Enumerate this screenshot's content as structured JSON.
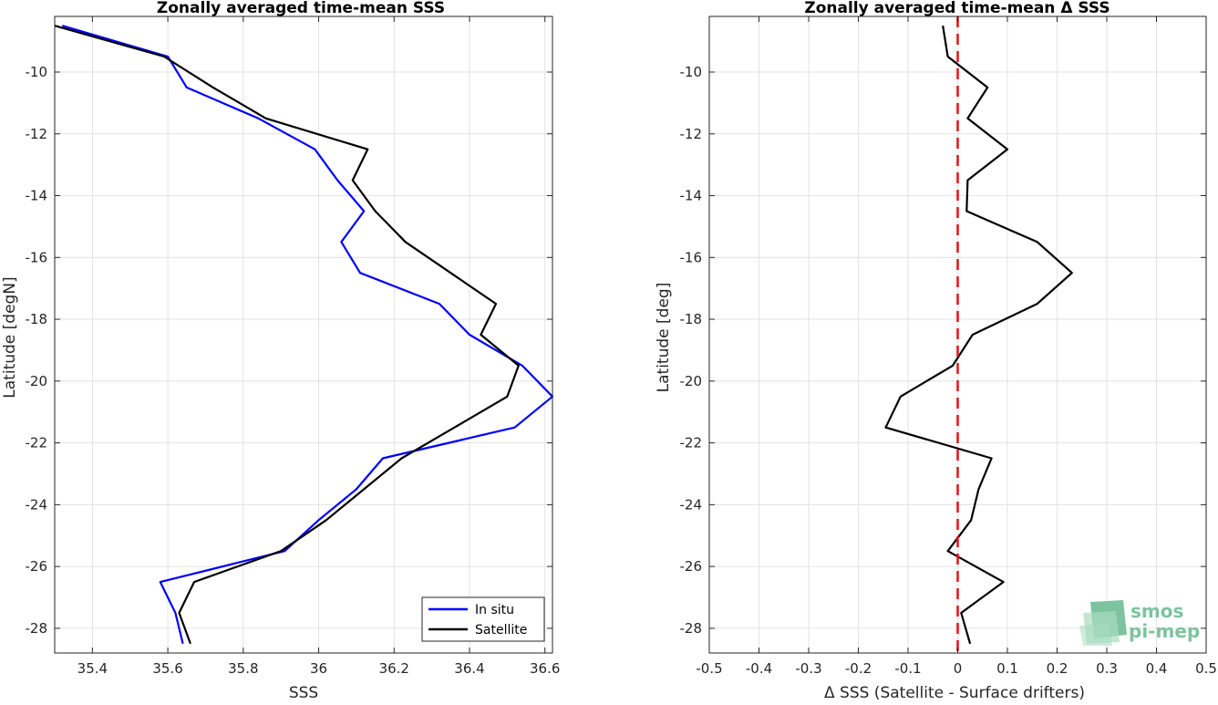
{
  "chart_data": [
    {
      "type": "line",
      "title": "Zonally averaged time-mean SSS",
      "xlabel": "SSS",
      "ylabel": "Latitude [degN]",
      "xlim": [
        35.3,
        36.62
      ],
      "ylim": [
        -28.8,
        -8.2
      ],
      "xticks": [
        35.4,
        35.6,
        35.8,
        36,
        36.2,
        36.4,
        36.6
      ],
      "xtick_labels": [
        "35.4",
        "35.6",
        "35.8",
        "36",
        "36.2",
        "36.4",
        "36.6"
      ],
      "yticks": [
        -28,
        -26,
        -24,
        -22,
        -20,
        -18,
        -16,
        -14,
        -12,
        -10
      ],
      "ytick_labels": [
        "-28",
        "-26",
        "-24",
        "-22",
        "-20",
        "-18",
        "-16",
        "-14",
        "-12",
        "-10"
      ],
      "grid": true,
      "legend_position": "bottom-right",
      "series": [
        {
          "name": "In situ",
          "color": "#0000ff",
          "points": [
            [
              35.32,
              -8.5
            ],
            [
              35.6,
              -9.5
            ],
            [
              35.65,
              -10.5
            ],
            [
              35.84,
              -11.5
            ],
            [
              35.99,
              -12.5
            ],
            [
              36.05,
              -13.5
            ],
            [
              36.12,
              -14.5
            ],
            [
              36.06,
              -15.5
            ],
            [
              36.11,
              -16.5
            ],
            [
              36.32,
              -17.5
            ],
            [
              36.4,
              -18.5
            ],
            [
              36.54,
              -19.5
            ],
            [
              36.62,
              -20.5
            ],
            [
              36.52,
              -21.5
            ],
            [
              36.17,
              -22.5
            ],
            [
              36.1,
              -23.5
            ],
            [
              36.0,
              -24.5
            ],
            [
              35.91,
              -25.5
            ],
            [
              35.58,
              -26.5
            ],
            [
              35.62,
              -27.5
            ],
            [
              35.64,
              -28.5
            ]
          ]
        },
        {
          "name": "Satellite",
          "color": "#000000",
          "points": [
            [
              35.3,
              -8.5
            ],
            [
              35.59,
              -9.5
            ],
            [
              35.72,
              -10.5
            ],
            [
              35.86,
              -11.5
            ],
            [
              36.13,
              -12.5
            ],
            [
              36.09,
              -13.5
            ],
            [
              36.15,
              -14.5
            ],
            [
              36.23,
              -15.5
            ],
            [
              36.35,
              -16.5
            ],
            [
              36.47,
              -17.5
            ],
            [
              36.43,
              -18.5
            ],
            [
              36.53,
              -19.5
            ],
            [
              36.5,
              -20.5
            ],
            [
              36.36,
              -21.5
            ],
            [
              36.22,
              -22.5
            ],
            [
              36.12,
              -23.5
            ],
            [
              36.02,
              -24.5
            ],
            [
              35.9,
              -25.5
            ],
            [
              35.67,
              -26.5
            ],
            [
              35.63,
              -27.5
            ],
            [
              35.66,
              -28.5
            ]
          ]
        }
      ]
    },
    {
      "type": "line",
      "title": "Zonally averaged time-mean Δ SSS",
      "xlabel": "Δ SSS (Satellite - Surface drifters)",
      "ylabel": "Latitude [deg]",
      "xlim": [
        -0.5,
        0.5
      ],
      "ylim": [
        -28.8,
        -8.2
      ],
      "xticks": [
        -0.5,
        -0.4,
        -0.3,
        -0.2,
        -0.1,
        0,
        0.1,
        0.2,
        0.3,
        0.4,
        0.5
      ],
      "xtick_labels": [
        "-0.5",
        "-0.4",
        "-0.3",
        "-0.2",
        "-0.1",
        "0",
        "0.1",
        "0.2",
        "0.3",
        "0.4",
        "0.5"
      ],
      "yticks": [
        -28,
        -26,
        -24,
        -22,
        -20,
        -18,
        -16,
        -14,
        -12,
        -10
      ],
      "ytick_labels": [
        "-28",
        "-26",
        "-24",
        "-22",
        "-20",
        "-18",
        "-16",
        "-14",
        "-12",
        "-10"
      ],
      "grid": true,
      "reference_line": {
        "x": 0,
        "color": "#e41a1c",
        "style": "dashed"
      },
      "series": [
        {
          "color": "#000000",
          "points": [
            [
              -0.03,
              -8.5
            ],
            [
              -0.02,
              -9.5
            ],
            [
              0.06,
              -10.5
            ],
            [
              0.02,
              -11.5
            ],
            [
              0.1,
              -12.5
            ],
            [
              0.02,
              -13.5
            ],
            [
              0.018,
              -14.5
            ],
            [
              0.16,
              -15.5
            ],
            [
              0.23,
              -16.5
            ],
            [
              0.16,
              -17.5
            ],
            [
              0.03,
              -18.5
            ],
            [
              -0.01,
              -19.5
            ],
            [
              -0.115,
              -20.5
            ],
            [
              -0.145,
              -21.5
            ],
            [
              0.068,
              -22.5
            ],
            [
              0.042,
              -23.5
            ],
            [
              0.027,
              -24.5
            ],
            [
              -0.02,
              -25.5
            ],
            [
              0.092,
              -26.5
            ],
            [
              0.007,
              -27.5
            ],
            [
              0.025,
              -28.5
            ]
          ]
        }
      ]
    }
  ],
  "logo": {
    "line1": "smos",
    "line2": "pi-mep",
    "colors": [
      "#7dc3a0",
      "#a8dbbf"
    ]
  }
}
